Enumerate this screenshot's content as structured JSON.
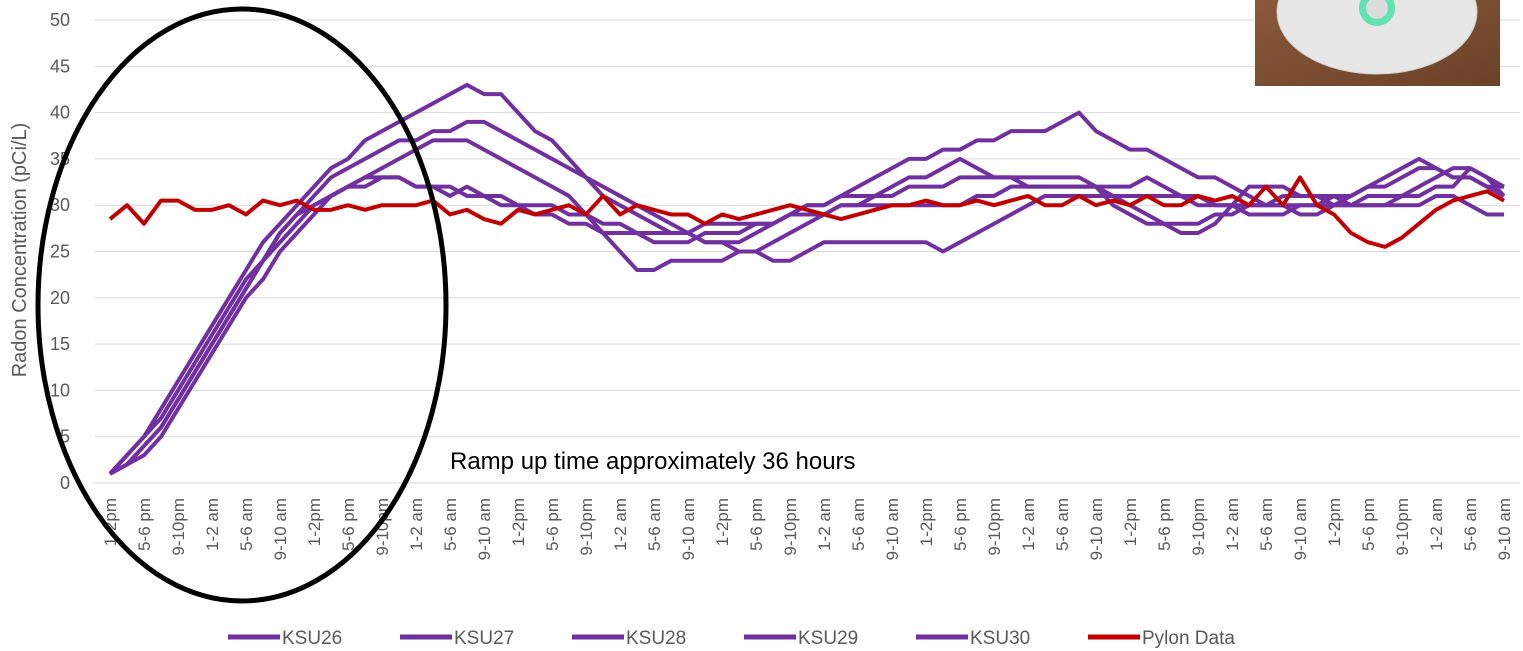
{
  "chart_data": {
    "type": "line",
    "y_label": "Radon Concentration (pCi/L)",
    "annotation": "Ramp up time approximately 36 hours",
    "categories": [
      "1-2pm",
      null,
      "5-6 pm",
      null,
      "9-10pm",
      null,
      "1-2 am",
      null,
      "5-6 am",
      null,
      "9-10 am",
      null,
      "1-2pm",
      null,
      "5-6 pm",
      null,
      "9-10pm",
      null,
      "1-2 am",
      null,
      "5-6 am",
      null,
      "9-10 am",
      null,
      "1-2pm",
      null,
      "5-6 pm",
      null,
      "9-10pm",
      null,
      "1-2 am",
      null,
      "5-6 am",
      null,
      "9-10 am",
      null,
      "1-2pm",
      null,
      "5-6 pm",
      null,
      "9-10pm",
      null,
      "1-2 am",
      null,
      "5-6 am",
      null,
      "9-10 am",
      null,
      "1-2pm",
      null,
      "5-6 pm",
      null,
      "9-10pm",
      null,
      "1-2 am",
      null,
      "5-6 am",
      null,
      "9-10 am",
      null,
      "1-2pm",
      null,
      "5-6 pm",
      null,
      "9-10pm",
      null,
      "1-2 am",
      null,
      "5-6 am",
      null,
      "9-10 am",
      null,
      "1-2pm",
      null,
      "5-6 pm",
      null,
      "9-10pm",
      null,
      "1-2 am",
      null,
      "5-6 am",
      null,
      "9-10 am"
    ],
    "series": [
      {
        "name": "KSU26",
        "color": "#7030a0",
        "values": [
          1,
          3,
          5,
          8,
          11,
          14,
          17,
          20,
          23,
          26,
          28,
          30,
          32,
          34,
          35,
          37,
          38,
          39,
          40,
          41,
          42,
          43,
          42,
          42,
          40,
          38,
          37,
          35,
          33,
          31,
          30,
          29,
          28,
          27,
          27,
          26,
          26,
          26,
          27,
          28,
          29,
          30,
          30,
          31,
          32,
          33,
          34,
          35,
          35,
          36,
          36,
          37,
          37,
          38,
          38,
          38,
          39,
          40,
          38,
          37,
          36,
          36,
          35,
          34,
          33,
          33,
          32,
          31,
          30,
          30,
          29,
          29,
          30,
          31,
          32,
          33,
          34,
          35,
          34,
          33,
          33,
          32,
          32
        ]
      },
      {
        "name": "KSU27",
        "color": "#7030a0",
        "values": [
          1,
          2,
          4,
          6,
          9,
          12,
          15,
          18,
          21,
          24,
          27,
          29,
          31,
          33,
          34,
          35,
          36,
          37,
          37,
          38,
          38,
          39,
          39,
          38,
          37,
          36,
          35,
          34,
          33,
          32,
          31,
          30,
          29,
          28,
          27,
          26,
          26,
          25,
          25,
          26,
          27,
          28,
          29,
          30,
          30,
          31,
          32,
          33,
          33,
          34,
          35,
          34,
          33,
          33,
          32,
          32,
          32,
          32,
          32,
          32,
          32,
          33,
          32,
          31,
          30,
          30,
          30,
          29,
          29,
          29,
          30,
          30,
          31,
          31,
          32,
          32,
          33,
          34,
          34,
          33,
          33,
          32,
          31
        ]
      },
      {
        "name": "KSU28",
        "color": "#7030a0",
        "values": [
          1,
          2,
          3,
          5,
          8,
          11,
          14,
          17,
          20,
          22,
          25,
          27,
          29,
          31,
          32,
          33,
          34,
          35,
          36,
          37,
          37,
          37,
          36,
          35,
          34,
          33,
          32,
          31,
          29,
          27,
          25,
          23,
          23,
          24,
          24,
          24,
          24,
          25,
          25,
          24,
          24,
          25,
          26,
          26,
          26,
          26,
          26,
          26,
          26,
          25,
          26,
          27,
          28,
          29,
          30,
          31,
          31,
          31,
          31,
          31,
          31,
          31,
          31,
          31,
          31,
          30,
          30,
          30,
          30,
          30,
          30,
          30,
          30,
          30,
          31,
          31,
          31,
          32,
          33,
          34,
          34,
          33,
          32
        ]
      },
      {
        "name": "KSU29",
        "color": "#7030a0",
        "values": [
          1,
          3,
          5,
          7,
          10,
          13,
          16,
          19,
          22,
          24,
          27,
          29,
          30,
          31,
          32,
          33,
          33,
          33,
          32,
          32,
          31,
          32,
          31,
          31,
          30,
          30,
          30,
          29,
          29,
          28,
          28,
          27,
          27,
          27,
          27,
          28,
          28,
          28,
          28,
          28,
          29,
          29,
          29,
          30,
          30,
          30,
          30,
          30,
          30,
          30,
          30,
          31,
          31,
          32,
          32,
          32,
          32,
          32,
          32,
          31,
          30,
          29,
          28,
          28,
          28,
          29,
          29,
          30,
          30,
          31,
          31,
          31,
          31,
          30,
          30,
          30,
          30,
          30,
          31,
          31,
          30,
          29,
          29
        ]
      },
      {
        "name": "KSU30",
        "color": "#7030a0",
        "values": [
          1,
          2,
          4,
          6,
          9,
          12,
          15,
          18,
          21,
          24,
          26,
          28,
          30,
          31,
          32,
          32,
          33,
          33,
          32,
          32,
          32,
          31,
          31,
          30,
          30,
          29,
          29,
          28,
          28,
          27,
          27,
          27,
          26,
          26,
          26,
          27,
          27,
          27,
          28,
          28,
          29,
          30,
          30,
          31,
          31,
          31,
          31,
          32,
          32,
          32,
          33,
          33,
          33,
          33,
          33,
          33,
          33,
          33,
          32,
          30,
          29,
          28,
          28,
          27,
          27,
          28,
          30,
          32,
          32,
          32,
          31,
          31,
          30,
          30,
          30,
          30,
          31,
          31,
          32,
          32,
          34,
          33,
          31
        ]
      },
      {
        "name": "Pylon Data",
        "color": "#c00000",
        "values": [
          28.5,
          30,
          28,
          30.5,
          30.5,
          29.5,
          29.5,
          30,
          29,
          30.5,
          30,
          30.5,
          29.5,
          29.5,
          30,
          29.5,
          30,
          30,
          30,
          30.5,
          29,
          29.5,
          28.5,
          28,
          29.5,
          29,
          29.5,
          30,
          29,
          31,
          29,
          30,
          29.5,
          29,
          29,
          28,
          29,
          28.5,
          29,
          29.5,
          30,
          29.5,
          29,
          28.5,
          29,
          29.5,
          30,
          30,
          30.5,
          30,
          30,
          30.5,
          30,
          30.5,
          31,
          30,
          30,
          31,
          30,
          30.5,
          30,
          31,
          30,
          30,
          31,
          30.5,
          31,
          30,
          32,
          30,
          33,
          30,
          29,
          27,
          26,
          25.5,
          26.5,
          28,
          29.5,
          30.5,
          31,
          31.5,
          30.5
        ]
      }
    ],
    "ylim": [
      0,
      50
    ],
    "yticks": [
      0,
      5,
      10,
      15,
      20,
      25,
      30,
      35,
      40,
      45,
      50
    ],
    "grid": true
  }
}
